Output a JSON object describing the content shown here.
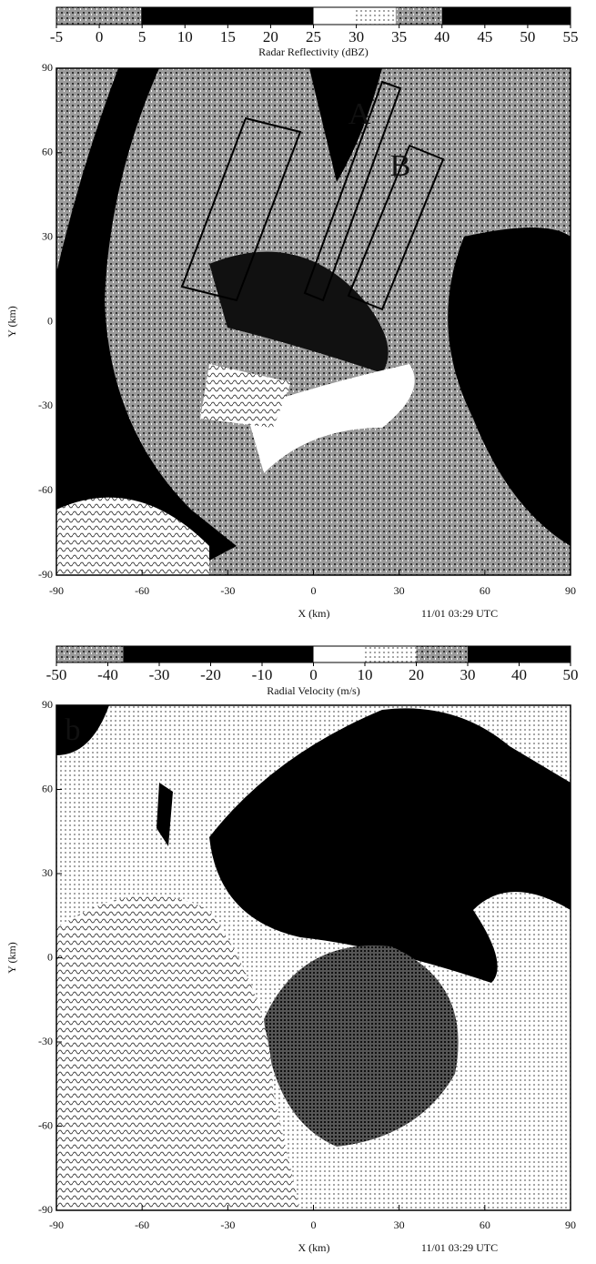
{
  "panels": [
    {
      "colorbar": {
        "ticks": [
          -5,
          0,
          5,
          10,
          15,
          20,
          25,
          30,
          35,
          40,
          45,
          50,
          55
        ],
        "label": "Radar Reflectivity (dBZ)"
      },
      "xticks": [
        -90,
        -60,
        -30,
        0,
        30,
        60,
        90
      ],
      "yticks": [
        -90,
        -60,
        -30,
        0,
        30,
        60,
        90
      ],
      "xlabel": "X (km)",
      "ylabel": "Y (km)",
      "timestamp": "11/01 03:29 UTC",
      "annotations": [
        "A",
        "B"
      ]
    },
    {
      "colorbar": {
        "ticks": [
          -50,
          -40,
          -30,
          -20,
          -10,
          0,
          10,
          20,
          30,
          40,
          50
        ],
        "label": "Radial Velocity (m/s)"
      },
      "xticks": [
        -90,
        -60,
        -30,
        0,
        30,
        60,
        90
      ],
      "yticks": [
        -90,
        -60,
        -30,
        0,
        30,
        60,
        90
      ],
      "xlabel": "X (km)",
      "ylabel": "Y (km)",
      "timestamp": "11/01 03:29 UTC",
      "annotations": [
        "b"
      ]
    }
  ]
}
